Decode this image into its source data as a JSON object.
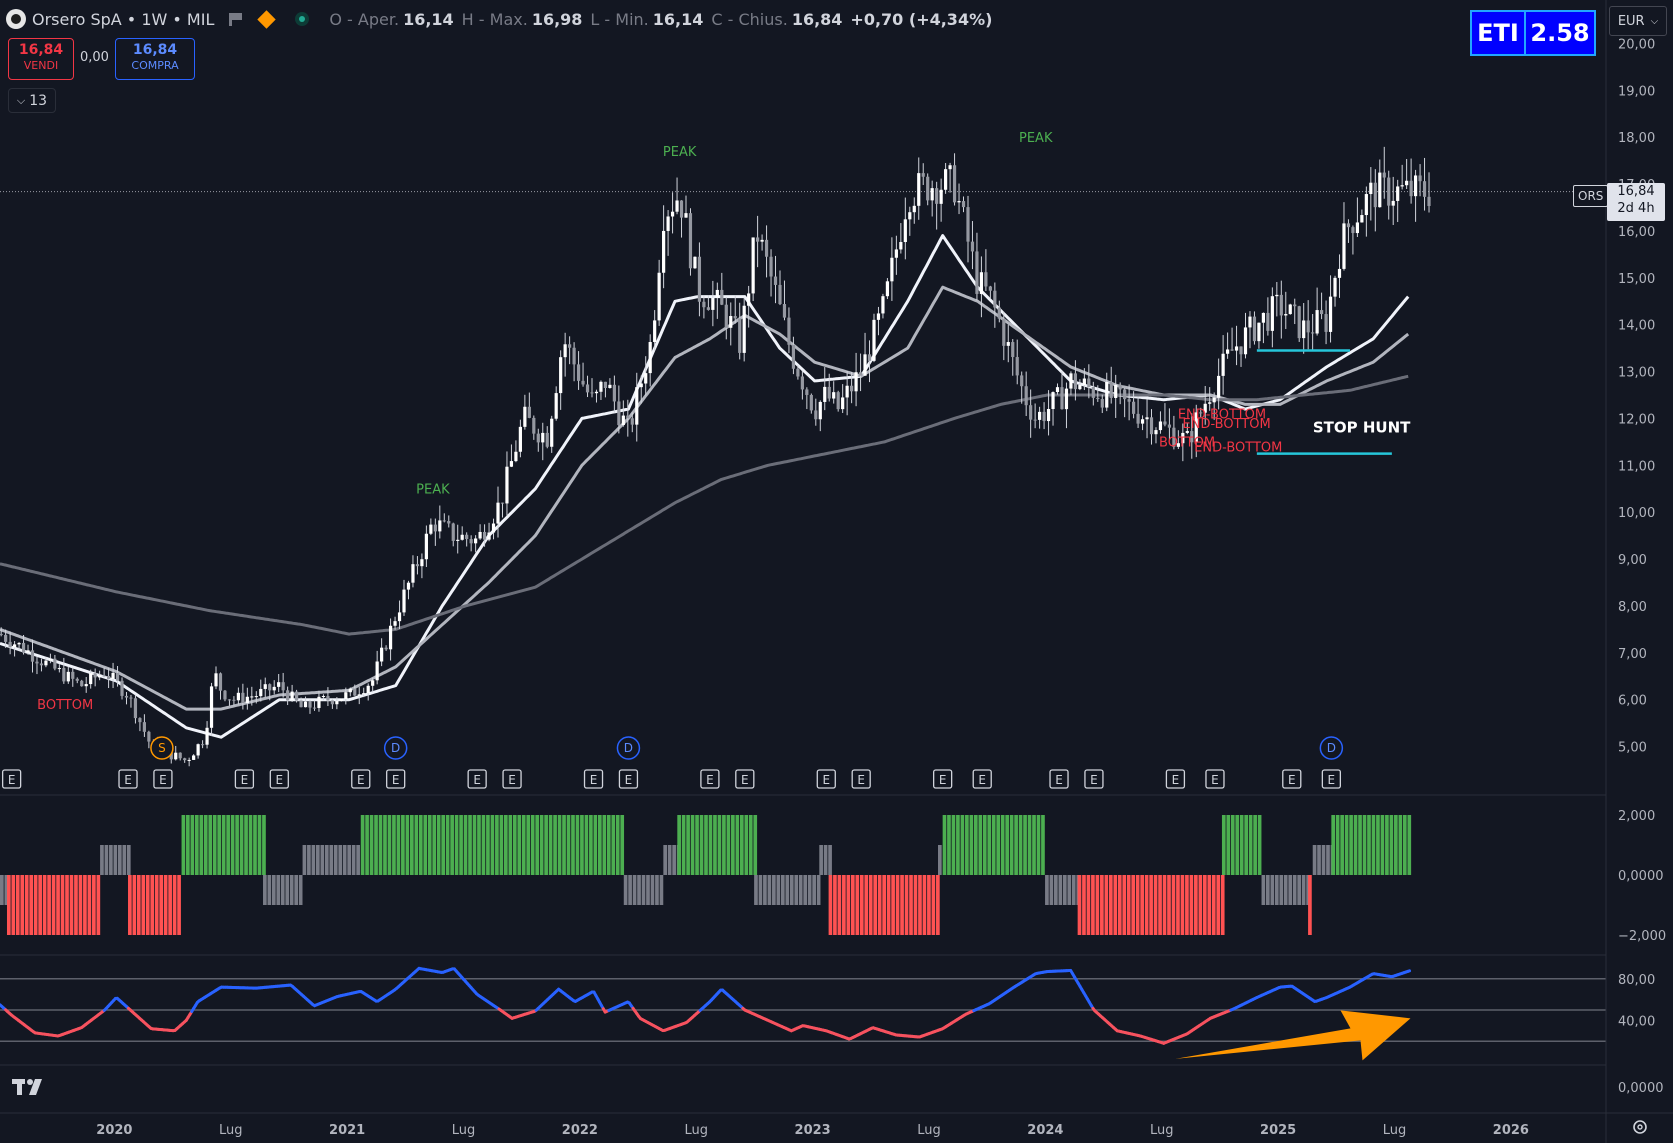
{
  "header": {
    "symbol": "Orsero SpA • 1W • MIL",
    "open_label": "O - Aper.",
    "open": "16,14",
    "high_label": "H - Max.",
    "high": "16,98",
    "low_label": "L - Min.",
    "low": "16,14",
    "close_label": "C - Chius.",
    "close": "16,84",
    "change": "+0,70 (+4,34%)"
  },
  "trade": {
    "sell_price": "16,84",
    "sell_label": "VENDI",
    "spread": "0,00",
    "buy_price": "16,84",
    "buy_label": "COMPRA"
  },
  "indicators_count": "13",
  "eti": {
    "label": "ETI",
    "value": "2.58"
  },
  "currency": "EUR",
  "price_tag": {
    "ticker": "ORS",
    "price": "16,84",
    "countdown": "2d 4h"
  },
  "colors": {
    "background": "#131722",
    "up_bar": "#4caf50",
    "down_bar": "#ff5252",
    "neutral_bar": "#787b86",
    "osc_high": "#2962ff",
    "osc_low": "#f7525f",
    "label_peak": "#4caf50",
    "label_bottom": "#f23645",
    "level_line": "#26c6da",
    "arrow": "#ff9800"
  },
  "chart_data": [
    {
      "type": "candlestick",
      "title": "",
      "price_axis": [
        "20,00",
        "19,00",
        "18,00",
        "17,00",
        "16,00",
        "15,00",
        "14,00",
        "13,00",
        "12,00",
        "11,00",
        "10,00",
        "9,00",
        "8,00",
        "7,00",
        "6,00",
        "5,00"
      ],
      "ylim": [
        4.5,
        20.5
      ],
      "time_axis": [
        "2020",
        "Lug",
        "2021",
        "Lug",
        "2022",
        "Lug",
        "2023",
        "Lug",
        "2024",
        "Lug",
        "2025",
        "Lug",
        "2026"
      ],
      "close_path": {
        "t": [
          2019.5,
          2019.6,
          2019.75,
          2019.85,
          2019.95,
          2020.05,
          2020.15,
          2020.25,
          2020.3,
          2020.38,
          2020.42,
          2020.45,
          2020.5,
          2020.6,
          2020.7,
          2020.8,
          2020.9,
          2021.0,
          2021.1,
          2021.2,
          2021.3,
          2021.36,
          2021.45,
          2021.55,
          2021.65,
          2021.75,
          2021.85,
          2021.92,
          2022.0,
          2022.05,
          2022.1,
          2022.2,
          2022.3,
          2022.35,
          2022.42,
          2022.5,
          2022.55,
          2022.62,
          2022.68,
          2022.75,
          2022.83,
          2022.9,
          2022.95,
          2023.0,
          2023.05,
          2023.1,
          2023.2,
          2023.3,
          2023.4,
          2023.5,
          2023.6,
          2023.7,
          2023.75,
          2023.8,
          2023.85,
          2023.9,
          2023.95,
          2024.0,
          2024.05,
          2024.1,
          2024.2,
          2024.3,
          2024.4,
          2024.5,
          2024.6,
          2024.7,
          2024.8,
          2024.9,
          2025.0,
          2025.1,
          2025.2,
          2025.25,
          2025.3,
          2025.35,
          2025.4,
          2025.5,
          2025.55,
          2025.6,
          2025.65,
          2025.7
        ],
        "y": [
          7.4,
          7.1,
          6.6,
          6.3,
          6.6,
          6.1,
          5.0,
          4.8,
          4.7,
          5.2,
          6.6,
          6.2,
          6.0,
          6.1,
          6.3,
          5.8,
          6.0,
          6.1,
          6.4,
          7.8,
          9.0,
          9.8,
          9.5,
          9.4,
          10.2,
          12.0,
          11.6,
          13.7,
          12.8,
          12.3,
          12.8,
          11.7,
          13.7,
          16.4,
          16.8,
          14.7,
          14.6,
          14.2,
          13.6,
          16.0,
          14.7,
          13.4,
          12.8,
          12.2,
          12.5,
          12.2,
          13.0,
          14.4,
          16.8,
          17.0,
          17.0,
          14.9,
          14.6,
          14.0,
          13.2,
          12.5,
          12.0,
          12.2,
          12.4,
          12.8,
          12.6,
          12.4,
          12.1,
          11.8,
          11.5,
          12.6,
          13.5,
          14.0,
          14.4,
          13.9,
          14.1,
          15.5,
          16.2,
          16.5,
          16.84,
          16.84,
          16.84,
          16.84,
          16.84,
          16.84
        ]
      },
      "moving_averages": [
        {
          "t": [
            2019.5,
            2020.0,
            2020.3,
            2020.45,
            2020.7,
            2021.0,
            2021.2,
            2021.4,
            2021.6,
            2021.8,
            2022.0,
            2022.2,
            2022.4,
            2022.5,
            2022.7,
            2022.85,
            2023.0,
            2023.2,
            2023.4,
            2023.55,
            2023.7,
            2023.9,
            2024.1,
            2024.3,
            2024.5,
            2024.7,
            2024.85,
            2025.0,
            2025.2,
            2025.4,
            2025.55
          ],
          "y": [
            7.2,
            6.4,
            5.4,
            5.2,
            6.0,
            6.0,
            6.3,
            8.0,
            9.5,
            10.5,
            12.0,
            12.2,
            14.5,
            14.6,
            14.6,
            13.5,
            12.8,
            12.9,
            14.5,
            15.9,
            14.8,
            13.8,
            12.8,
            12.5,
            12.4,
            12.5,
            12.2,
            12.4,
            13.1,
            13.7,
            14.6
          ]
        },
        {
          "t": [
            2019.5,
            2020.0,
            2020.3,
            2020.45,
            2020.7,
            2021.0,
            2021.2,
            2021.4,
            2021.6,
            2021.8,
            2022.0,
            2022.2,
            2022.4,
            2022.55,
            2022.7,
            2022.85,
            2023.0,
            2023.2,
            2023.4,
            2023.55,
            2023.7,
            2023.9,
            2024.1,
            2024.3,
            2024.5,
            2024.7,
            2024.85,
            2025.0,
            2025.2,
            2025.4,
            2025.55
          ],
          "y": [
            7.5,
            6.6,
            5.8,
            5.8,
            6.1,
            6.2,
            6.7,
            7.6,
            8.5,
            9.5,
            11.0,
            12.0,
            13.3,
            13.7,
            14.2,
            13.8,
            13.2,
            12.9,
            13.5,
            14.8,
            14.5,
            13.8,
            13.1,
            12.7,
            12.5,
            12.5,
            12.3,
            12.3,
            12.8,
            13.2,
            13.8
          ]
        },
        {
          "t": [
            2019.5,
            2020.0,
            2020.4,
            2020.8,
            2021.0,
            2021.2,
            2021.5,
            2021.8,
            2022.0,
            2022.2,
            2022.4,
            2022.6,
            2022.8,
            2023.0,
            2023.3,
            2023.6,
            2023.8,
            2024.0,
            2024.3,
            2024.5,
            2024.7,
            2024.9,
            2025.1,
            2025.3,
            2025.55
          ],
          "y": [
            8.9,
            8.3,
            7.9,
            7.6,
            7.4,
            7.5,
            8.0,
            8.4,
            9.0,
            9.6,
            10.2,
            10.7,
            11.0,
            11.2,
            11.5,
            12.0,
            12.3,
            12.5,
            12.5,
            12.5,
            12.4,
            12.4,
            12.5,
            12.6,
            12.9
          ]
        }
      ],
      "levels": [
        {
          "value": 13.45,
          "from": 2024.9,
          "to": 2025.3
        },
        {
          "value": 11.25,
          "from": 2024.9,
          "to": 2025.48
        }
      ],
      "annotations": [
        {
          "text": "PEAK",
          "t": 2021.36,
          "y": 10.4,
          "kind": "peak"
        },
        {
          "text": "PEAK",
          "t": 2022.42,
          "y": 17.6,
          "kind": "peak"
        },
        {
          "text": "PEAK",
          "t": 2023.95,
          "y": 17.9,
          "kind": "peak"
        },
        {
          "text": "BOTTOM",
          "t": 2019.78,
          "y": 5.8,
          "kind": "bottom"
        },
        {
          "text": "BOTTOM",
          "t": 2024.6,
          "y": 11.4,
          "kind": "bottom"
        },
        {
          "text": "END-BOTTOM",
          "t": 2024.75,
          "y": 12.0,
          "kind": "bottom"
        },
        {
          "text": "END-BOTTOM",
          "t": 2024.77,
          "y": 11.8,
          "kind": "bottom"
        },
        {
          "text": "END-BOTTOM",
          "t": 2024.82,
          "y": 11.3,
          "kind": "bottom"
        },
        {
          "text": "STOP HUNT",
          "t": 2025.35,
          "y": 11.7,
          "kind": "note"
        }
      ],
      "events": {
        "earnings": [
          2019.55,
          2020.05,
          2020.2,
          2020.55,
          2020.7,
          2021.05,
          2021.2,
          2021.55,
          2021.7,
          2022.05,
          2022.2,
          2022.55,
          2022.7,
          2023.05,
          2023.2,
          2023.55,
          2023.72,
          2024.05,
          2024.2,
          2024.55,
          2024.72,
          2025.05,
          2025.22
        ],
        "dividends": [
          2021.2,
          2022.2,
          2025.22
        ],
        "splits": [
          2020.2
        ]
      },
      "current_price": 16.84
    },
    {
      "type": "bar",
      "title": "",
      "axis": [
        "2,000",
        "0,0000",
        "−2,000"
      ],
      "ylim": [
        -2.5,
        2.5
      ],
      "segments": [
        {
          "from": 2019.5,
          "to": 2019.53,
          "value": -1,
          "state": "neutral"
        },
        {
          "from": 2019.53,
          "to": 2019.93,
          "value": -2,
          "state": "down"
        },
        {
          "from": 2019.93,
          "to": 2020.05,
          "value": 1,
          "state": "neutral"
        },
        {
          "from": 2020.05,
          "to": 2020.28,
          "value": -2,
          "state": "down"
        },
        {
          "from": 2020.28,
          "to": 2020.63,
          "value": 2,
          "state": "up"
        },
        {
          "from": 2020.63,
          "to": 2020.8,
          "value": -1,
          "state": "neutral"
        },
        {
          "from": 2020.8,
          "to": 2021.05,
          "value": 1,
          "state": "neutral"
        },
        {
          "from": 2021.05,
          "to": 2022.18,
          "value": 2,
          "state": "up"
        },
        {
          "from": 2022.18,
          "to": 2022.35,
          "value": -1,
          "state": "neutral"
        },
        {
          "from": 2022.35,
          "to": 2022.41,
          "value": 1,
          "state": "neutral"
        },
        {
          "from": 2022.41,
          "to": 2022.74,
          "value": 2,
          "state": "up"
        },
        {
          "from": 2022.74,
          "to": 2023.02,
          "value": -1,
          "state": "neutral"
        },
        {
          "from": 2023.02,
          "to": 2023.06,
          "value": 1,
          "state": "neutral"
        },
        {
          "from": 2023.06,
          "to": 2023.53,
          "value": -2,
          "state": "down"
        },
        {
          "from": 2023.53,
          "to": 2023.55,
          "value": 1,
          "state": "neutral"
        },
        {
          "from": 2023.55,
          "to": 2023.99,
          "value": 2,
          "state": "up"
        },
        {
          "from": 2023.99,
          "to": 2024.13,
          "value": -1,
          "state": "neutral"
        },
        {
          "from": 2024.13,
          "to": 2024.75,
          "value": -2,
          "state": "down"
        },
        {
          "from": 2024.75,
          "to": 2024.92,
          "value": 2,
          "state": "up"
        },
        {
          "from": 2024.92,
          "to": 2025.12,
          "value": -1,
          "state": "neutral"
        },
        {
          "from": 2025.12,
          "to": 2025.14,
          "value": -2,
          "state": "down"
        },
        {
          "from": 2025.14,
          "to": 2025.22,
          "value": 1,
          "state": "neutral"
        },
        {
          "from": 2025.22,
          "to": 2025.56,
          "value": 2,
          "state": "up"
        }
      ]
    },
    {
      "type": "line",
      "title": "",
      "axis": [
        "80,00",
        "40,00",
        "0,0000"
      ],
      "ylim": [
        0,
        100
      ],
      "levels": [
        80,
        50,
        20
      ],
      "t": [
        2019.5,
        2019.55,
        2019.65,
        2019.75,
        2019.85,
        2019.95,
        2020.0,
        2020.05,
        2020.15,
        2020.25,
        2020.3,
        2020.35,
        2020.45,
        2020.6,
        2020.75,
        2020.85,
        2020.95,
        2021.05,
        2021.12,
        2021.2,
        2021.3,
        2021.4,
        2021.45,
        2021.55,
        2021.65,
        2021.7,
        2021.8,
        2021.9,
        2021.97,
        2022.05,
        2022.1,
        2022.2,
        2022.25,
        2022.35,
        2022.45,
        2022.55,
        2022.6,
        2022.7,
        2022.8,
        2022.9,
        2022.95,
        2023.05,
        2023.15,
        2023.25,
        2023.35,
        2023.45,
        2023.55,
        2023.65,
        2023.75,
        2023.85,
        2023.95,
        2024.0,
        2024.1,
        2024.2,
        2024.3,
        2024.4,
        2024.5,
        2024.6,
        2024.7,
        2024.8,
        2024.9,
        2025.0,
        2025.05,
        2025.15,
        2025.2,
        2025.3,
        2025.4,
        2025.48,
        2025.56
      ],
      "values": [
        55,
        45,
        28,
        25,
        33,
        50,
        62,
        52,
        32,
        30,
        40,
        58,
        72,
        71,
        74,
        54,
        63,
        68,
        58,
        70,
        90,
        86,
        90,
        65,
        50,
        42,
        49,
        70,
        58,
        68,
        48,
        58,
        42,
        30,
        38,
        58,
        70,
        50,
        40,
        30,
        35,
        30,
        22,
        33,
        26,
        24,
        32,
        46,
        56,
        71,
        85,
        87,
        88,
        50,
        30,
        25,
        18,
        27,
        42,
        51,
        62,
        72,
        73,
        58,
        62,
        72,
        85,
        82,
        88
      ]
    }
  ]
}
